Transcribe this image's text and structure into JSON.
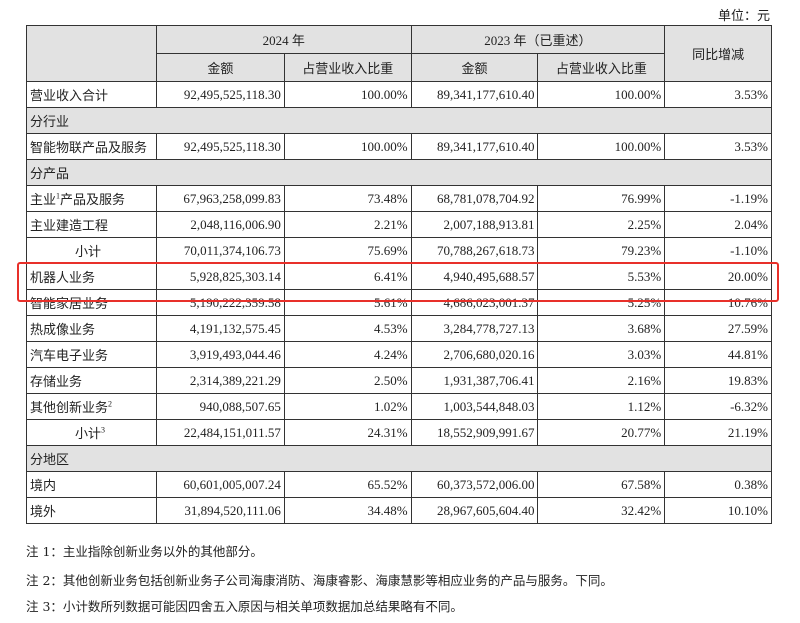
{
  "unit": "单位：元",
  "header": {
    "y2024": "2024 年",
    "y2023": "2023 年（已重述）",
    "yoy": "同比增减",
    "amount": "金额",
    "share": "占营业收入比重"
  },
  "rows": [
    {
      "label": "营业收入合计",
      "a24": "92,495,525,118.30",
      "s24": "100.00%",
      "a23": "89,341,177,610.40",
      "s23": "100.00%",
      "yoy": "3.53%"
    },
    {
      "section": "分行业"
    },
    {
      "label": "智能物联产品及服务",
      "a24": "92,495,525,118.30",
      "s24": "100.00%",
      "a23": "89,341,177,610.40",
      "s23": "100.00%",
      "yoy": "3.53%"
    },
    {
      "section": "分产品"
    },
    {
      "label": "主业",
      "sup": "1",
      "label_after": "产品及服务",
      "a24": "67,963,258,099.83",
      "s24": "73.48%",
      "a23": "68,781,078,704.92",
      "s23": "76.99%",
      "yoy": "-1.19%"
    },
    {
      "label": "主业建造工程",
      "a24": "2,048,116,006.90",
      "s24": "2.21%",
      "a23": "2,007,188,913.81",
      "s23": "2.25%",
      "yoy": "2.04%"
    },
    {
      "label": "小计",
      "subtotal": true,
      "a24": "70,011,374,106.73",
      "s24": "75.69%",
      "a23": "70,788,267,618.73",
      "s23": "79.23%",
      "yoy": "-1.10%"
    },
    {
      "label": "机器人业务",
      "highlight": true,
      "a24": "5,928,825,303.14",
      "s24": "6.41%",
      "a23": "4,940,495,688.57",
      "s23": "5.53%",
      "yoy": "20.00%"
    },
    {
      "label": "智能家居业务",
      "a24": "5,190,222,359.58",
      "s24": "5.61%",
      "a23": "4,686,023,001.37",
      "s23": "5.25%",
      "yoy": "10.76%"
    },
    {
      "label": "热成像业务",
      "a24": "4,191,132,575.45",
      "s24": "4.53%",
      "a23": "3,284,778,727.13",
      "s23": "3.68%",
      "yoy": "27.59%"
    },
    {
      "label": "汽车电子业务",
      "a24": "3,919,493,044.46",
      "s24": "4.24%",
      "a23": "2,706,680,020.16",
      "s23": "3.03%",
      "yoy": "44.81%"
    },
    {
      "label": "存储业务",
      "a24": "2,314,389,221.29",
      "s24": "2.50%",
      "a23": "1,931,387,706.41",
      "s23": "2.16%",
      "yoy": "19.83%"
    },
    {
      "label": "其他创新业务",
      "sup": "2",
      "a24": "940,088,507.65",
      "s24": "1.02%",
      "a23": "1,003,544,848.03",
      "s23": "1.12%",
      "yoy": "-6.32%"
    },
    {
      "label": "小计",
      "sup": "3",
      "subtotal": true,
      "a24": "22,484,151,011.57",
      "s24": "24.31%",
      "a23": "18,552,909,991.67",
      "s23": "20.77%",
      "yoy": "21.19%"
    },
    {
      "section": "分地区"
    },
    {
      "label": "境内",
      "a24": "60,601,005,007.24",
      "s24": "65.52%",
      "a23": "60,373,572,006.00",
      "s23": "67.58%",
      "yoy": "0.38%"
    },
    {
      "label": "境外",
      "a24": "31,894,520,111.06",
      "s24": "34.48%",
      "a23": "28,967,605,604.40",
      "s23": "32.42%",
      "yoy": "10.10%"
    }
  ],
  "notes": [
    "注 1：主业指除创新业务以外的其他部分。",
    "注 2：其他创新业务包括创新业务子公司海康消防、海康睿影、海康慧影等相应业务的产品与服务。下同。",
    "注 3：小计数所列数据可能因四舍五入原因与相关单项数据加总结果略有不同。"
  ],
  "highlight_color": "#e8302a"
}
